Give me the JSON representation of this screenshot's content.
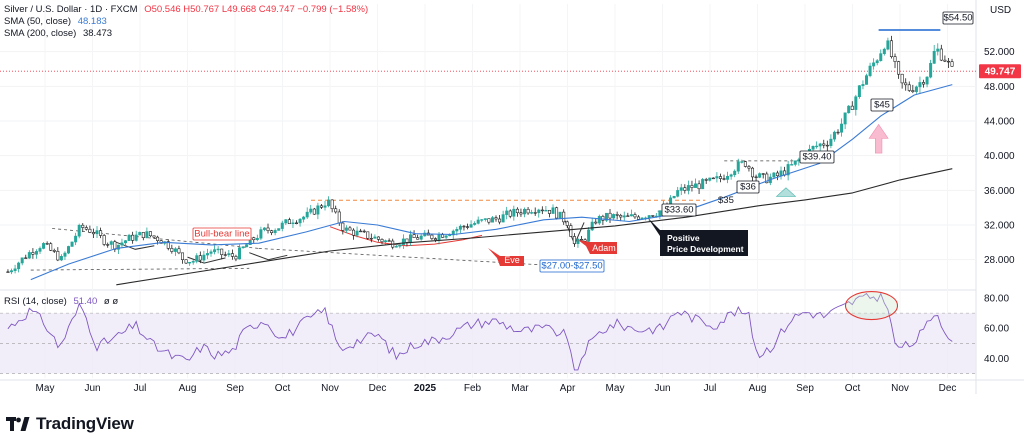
{
  "header": {
    "symbol": "Silver / U.S. Dollar · 1D · FXCM",
    "ohlc": "O50.546  H50.767  L49.668  C49.747  −0.799 (−1.58%)",
    "sma50_label": "SMA (50, close)",
    "sma50_value": "48.183",
    "sma200_label": "SMA (200, close)",
    "sma200_value": "38.473",
    "currency": "USD"
  },
  "rsi_header": {
    "label": "RSI (14, close)",
    "value": "51.40",
    "extra": "ø  ø"
  },
  "brand": "TradingView",
  "colors": {
    "up": "#26a69a",
    "down": "#1f1f1f",
    "sma50": "#3a7bd5",
    "sma200": "#2a2a2a",
    "rsi": "#7e57c2",
    "rsi_band": "#ede7f6",
    "price_tag": "#f23645",
    "annotation_red": "#e53935",
    "annotation_blue": "#1e66d0"
  },
  "chart_data": {
    "type": "candlestick",
    "title": "Silver / U.S. Dollar · 1D · FXCM",
    "ylabel": "USD",
    "ylim": [
      24.5,
      57.5
    ],
    "y_ticks": [
      "28.000",
      "32.000",
      "36.000",
      "40.000",
      "44.000",
      "48.000",
      "52.000"
    ],
    "last_price": "49.747",
    "x_ticks": [
      "May",
      "Jun",
      "Jul",
      "Aug",
      "Sep",
      "Oct",
      "Nov",
      "Dec",
      "2025",
      "Feb",
      "Mar",
      "Apr",
      "May",
      "Jun",
      "Jul",
      "Aug",
      "Sep",
      "Oct",
      "Nov",
      "Dec"
    ],
    "x_tick_index": [
      0,
      1,
      2,
      3,
      4,
      5,
      6,
      7,
      8,
      9,
      10,
      11,
      12,
      13,
      14,
      15,
      16,
      17,
      18,
      19
    ],
    "x_range": [
      -0.35,
      19.15
    ],
    "price_path": [
      [
        -0.78,
        26.6
      ],
      [
        -0.35,
        28.7
      ],
      [
        -0.05,
        29.8
      ],
      [
        0.35,
        28.0
      ],
      [
        0.75,
        31.8
      ],
      [
        1.0,
        31.3
      ],
      [
        1.25,
        30.2
      ],
      [
        1.5,
        29.6
      ],
      [
        1.75,
        30.4
      ],
      [
        2.1,
        31.0
      ],
      [
        2.4,
        30.4
      ],
      [
        2.7,
        29.3
      ],
      [
        2.9,
        28.1
      ],
      [
        3.1,
        27.8
      ],
      [
        3.3,
        28.4
      ],
      [
        3.5,
        29.0
      ],
      [
        3.8,
        28.5
      ],
      [
        4.0,
        28.4
      ],
      [
        4.3,
        30.0
      ],
      [
        4.6,
        31.3
      ],
      [
        4.9,
        31.7
      ],
      [
        5.2,
        32.6
      ],
      [
        5.5,
        33.0
      ],
      [
        5.7,
        33.8
      ],
      [
        5.95,
        34.8
      ],
      [
        6.1,
        33.2
      ],
      [
        6.3,
        31.5
      ],
      [
        6.6,
        31.0
      ],
      [
        6.95,
        30.5
      ],
      [
        7.3,
        29.9
      ],
      [
        7.6,
        30.3
      ],
      [
        7.9,
        30.6
      ],
      [
        8.2,
        30.7
      ],
      [
        8.5,
        31.2
      ],
      [
        8.9,
        32.0
      ],
      [
        9.2,
        32.4
      ],
      [
        9.5,
        32.7
      ],
      [
        9.8,
        33.3
      ],
      [
        10.15,
        33.8
      ],
      [
        10.4,
        34.0
      ],
      [
        10.7,
        33.6
      ],
      [
        11.0,
        32.3
      ],
      [
        11.15,
        29.7
      ],
      [
        11.35,
        30.3
      ],
      [
        11.6,
        32.6
      ],
      [
        11.9,
        33.0
      ],
      [
        12.2,
        32.8
      ],
      [
        12.6,
        33.1
      ],
      [
        12.9,
        33.5
      ],
      [
        13.1,
        34.1
      ],
      [
        13.3,
        35.8
      ],
      [
        13.6,
        36.4
      ],
      [
        13.9,
        36.8
      ],
      [
        14.2,
        37.3
      ],
      [
        14.5,
        38.6
      ],
      [
        14.75,
        39.2
      ],
      [
        14.95,
        37.7
      ],
      [
        15.15,
        37.3
      ],
      [
        15.4,
        37.6
      ],
      [
        15.7,
        38.7
      ],
      [
        15.95,
        39.8
      ],
      [
        16.2,
        41.0
      ],
      [
        16.5,
        41.7
      ],
      [
        16.75,
        43.5
      ],
      [
        16.95,
        45.4
      ],
      [
        17.15,
        47.8
      ],
      [
        17.35,
        49.8
      ],
      [
        17.55,
        51.6
      ],
      [
        17.7,
        53.3
      ],
      [
        17.85,
        51.0
      ],
      [
        18.0,
        48.3
      ],
      [
        18.2,
        47.7
      ],
      [
        18.4,
        48.3
      ],
      [
        18.6,
        49.6
      ],
      [
        18.75,
        52.4
      ],
      [
        18.95,
        51.2
      ],
      [
        19.1,
        49.75
      ]
    ],
    "sma50_path": [
      [
        -0.3,
        25.7
      ],
      [
        0.5,
        27.5
      ],
      [
        1.5,
        29.3
      ],
      [
        2.5,
        30.0
      ],
      [
        3.5,
        29.7
      ],
      [
        4.5,
        29.9
      ],
      [
        5.5,
        31.2
      ],
      [
        6.3,
        32.4
      ],
      [
        7.0,
        32.0
      ],
      [
        7.8,
        31.0
      ],
      [
        8.6,
        30.9
      ],
      [
        9.5,
        31.5
      ],
      [
        10.5,
        32.6
      ],
      [
        11.3,
        32.9
      ],
      [
        12.3,
        32.4
      ],
      [
        13.3,
        33.3
      ],
      [
        14.3,
        35.2
      ],
      [
        15.3,
        37.3
      ],
      [
        16.3,
        39.1
      ],
      [
        17.0,
        41.9
      ],
      [
        17.6,
        44.6
      ],
      [
        18.3,
        47.0
      ],
      [
        19.1,
        48.2
      ]
    ],
    "sma200_path": [
      [
        1.5,
        25.1
      ],
      [
        3.0,
        26.4
      ],
      [
        4.5,
        27.7
      ],
      [
        6.0,
        29.0
      ],
      [
        7.5,
        29.9
      ],
      [
        9.0,
        30.5
      ],
      [
        10.5,
        31.2
      ],
      [
        12.0,
        31.9
      ],
      [
        13.5,
        32.9
      ],
      [
        15.0,
        34.2
      ],
      [
        16.0,
        34.9
      ],
      [
        17.0,
        35.7
      ],
      [
        18.0,
        37.2
      ],
      [
        19.1,
        38.5
      ]
    ],
    "rsi": {
      "label": "RSI (14, close)",
      "value": "51.40",
      "ylim": [
        27,
        84
      ],
      "y_ticks": [
        "40.00",
        "60.00",
        "80.00"
      ],
      "band": [
        30,
        70
      ],
      "path": [
        [
          -0.78,
          60
        ],
        [
          -0.3,
          72
        ],
        [
          0.0,
          63
        ],
        [
          0.3,
          47
        ],
        [
          0.75,
          76
        ],
        [
          1.1,
          48
        ],
        [
          1.5,
          54
        ],
        [
          1.9,
          62
        ],
        [
          2.3,
          48
        ],
        [
          2.7,
          41
        ],
        [
          3.0,
          38
        ],
        [
          3.3,
          48
        ],
        [
          3.6,
          42
        ],
        [
          3.95,
          45
        ],
        [
          4.2,
          58
        ],
        [
          4.6,
          66
        ],
        [
          5.0,
          53
        ],
        [
          5.5,
          65
        ],
        [
          5.9,
          72
        ],
        [
          6.2,
          46
        ],
        [
          6.6,
          52
        ],
        [
          7.0,
          56
        ],
        [
          7.4,
          41
        ],
        [
          7.8,
          50
        ],
        [
          8.2,
          52
        ],
        [
          8.5,
          56
        ],
        [
          9.0,
          63
        ],
        [
          9.5,
          65
        ],
        [
          10.0,
          58
        ],
        [
          10.5,
          60
        ],
        [
          11.0,
          55
        ],
        [
          11.15,
          28
        ],
        [
          11.35,
          45
        ],
        [
          11.7,
          58
        ],
        [
          12.0,
          63
        ],
        [
          12.5,
          59
        ],
        [
          13.0,
          60
        ],
        [
          13.3,
          72
        ],
        [
          13.7,
          66
        ],
        [
          14.1,
          62
        ],
        [
          14.5,
          71
        ],
        [
          14.8,
          70
        ],
        [
          15.0,
          42
        ],
        [
          15.3,
          48
        ],
        [
          15.7,
          66
        ],
        [
          16.0,
          71
        ],
        [
          16.4,
          68
        ],
        [
          16.8,
          74
        ],
        [
          17.1,
          79
        ],
        [
          17.4,
          81
        ],
        [
          17.7,
          80
        ],
        [
          17.9,
          48
        ],
        [
          18.2,
          48
        ],
        [
          18.5,
          58
        ],
        [
          18.75,
          72
        ],
        [
          18.95,
          59
        ],
        [
          19.1,
          51.4
        ]
      ]
    },
    "annotations": [
      {
        "kind": "label",
        "text": "Bull-bear line",
        "style": "red-box"
      },
      {
        "kind": "label",
        "text": "Eve",
        "style": "red-tag"
      },
      {
        "kind": "label",
        "text": "Adam",
        "style": "red-tag"
      },
      {
        "kind": "label",
        "text": "$27.00-$27.50",
        "style": "blue-box"
      },
      {
        "kind": "label",
        "text": "Positive\nPrice Development",
        "style": "black-tag"
      },
      {
        "kind": "label",
        "text": "$33.60",
        "style": "box"
      },
      {
        "kind": "label",
        "text": "$35",
        "style": "plain"
      },
      {
        "kind": "label",
        "text": "$36",
        "style": "box"
      },
      {
        "kind": "label",
        "text": "$39.40",
        "style": "box"
      },
      {
        "kind": "label",
        "text": "$45",
        "style": "box"
      },
      {
        "kind": "label",
        "text": "$54.50",
        "style": "box"
      }
    ]
  }
}
